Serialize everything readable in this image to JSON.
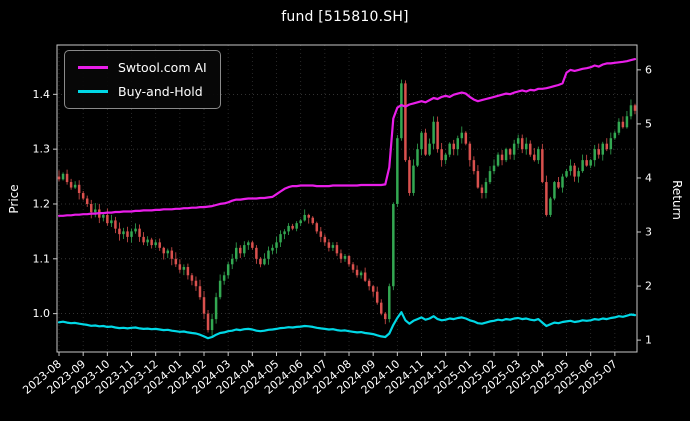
{
  "chart_data": {
    "type": "candlestick",
    "title": "fund [515810.SH]",
    "colors": {
      "background": "#000000",
      "text": "#ffffff",
      "grid": "#5a5a5a",
      "spine": "#c8c8c8",
      "up_candle": "#33a852",
      "down_candle": "#d9514e",
      "ai_line": "#e91ee9",
      "bh_line": "#00d8e6"
    },
    "left_axis": {
      "label": "Price",
      "ticks": [
        "1.0",
        "1.1",
        "1.2",
        "1.3",
        "1.4"
      ],
      "range": [
        0.93,
        1.49
      ]
    },
    "right_axis": {
      "label": "Return",
      "ticks": [
        "1",
        "2",
        "3",
        "4",
        "5",
        "6"
      ],
      "range": [
        0.78,
        6.46
      ]
    },
    "x_tick_labels": [
      "2023-08",
      "2023-09",
      "2023-10",
      "2023-11",
      "2023-12",
      "2024-01",
      "2024-02",
      "2024-03",
      "2024-04",
      "2024-05",
      "2024-06",
      "2024-07",
      "2024-08",
      "2024-09",
      "2024-10",
      "2024-11",
      "2024-12",
      "2025-01",
      "2025-02",
      "2025-03",
      "2025-04",
      "2025-05",
      "2025-06",
      "2025-07"
    ],
    "legend": [
      {
        "label": "Swtool.com AI",
        "color": "#e91ee9"
      },
      {
        "label": "Buy-and-Hold",
        "color": "#00d8e6"
      }
    ],
    "candles": {
      "axis": "left",
      "points_per_month": 6,
      "wick_jitter": 0.01,
      "closes": [
        1.245,
        1.255,
        1.24,
        1.23,
        1.235,
        1.22,
        1.21,
        1.2,
        1.185,
        1.19,
        1.175,
        1.18,
        1.165,
        1.17,
        1.155,
        1.145,
        1.15,
        1.14,
        1.15,
        1.155,
        1.14,
        1.13,
        1.135,
        1.125,
        1.13,
        1.12,
        1.11,
        1.115,
        1.1,
        1.09,
        1.08,
        1.085,
        1.07,
        1.06,
        1.05,
        1.03,
        1.0,
        0.97,
        0.99,
        1.03,
        1.06,
        1.07,
        1.09,
        1.1,
        1.12,
        1.11,
        1.125,
        1.13,
        1.12,
        1.1,
        1.09,
        1.1,
        1.115,
        1.12,
        1.13,
        1.145,
        1.15,
        1.16,
        1.155,
        1.165,
        1.17,
        1.18,
        1.175,
        1.165,
        1.15,
        1.14,
        1.13,
        1.12,
        1.125,
        1.11,
        1.1,
        1.105,
        1.09,
        1.08,
        1.07,
        1.075,
        1.06,
        1.05,
        1.04,
        1.02,
        1.0,
        0.99,
        1.05,
        1.2,
        1.32,
        1.42,
        1.28,
        1.22,
        1.27,
        1.3,
        1.33,
        1.29,
        1.31,
        1.35,
        1.3,
        1.28,
        1.29,
        1.31,
        1.3,
        1.32,
        1.33,
        1.31,
        1.28,
        1.26,
        1.23,
        1.22,
        1.24,
        1.26,
        1.27,
        1.29,
        1.28,
        1.3,
        1.29,
        1.31,
        1.32,
        1.3,
        1.31,
        1.29,
        1.28,
        1.3,
        1.24,
        1.18,
        1.21,
        1.24,
        1.23,
        1.25,
        1.26,
        1.27,
        1.25,
        1.26,
        1.28,
        1.27,
        1.28,
        1.3,
        1.29,
        1.31,
        1.3,
        1.32,
        1.33,
        1.35,
        1.34,
        1.36,
        1.38,
        1.37
      ]
    },
    "lines": [
      {
        "name": "Swtool.com AI",
        "axis": "right",
        "color": "#e91ee9",
        "values": [
          3.3,
          3.3,
          3.31,
          3.31,
          3.32,
          3.32,
          3.33,
          3.33,
          3.34,
          3.34,
          3.35,
          3.35,
          3.36,
          3.36,
          3.37,
          3.37,
          3.38,
          3.38,
          3.38,
          3.39,
          3.39,
          3.4,
          3.4,
          3.4,
          3.41,
          3.41,
          3.42,
          3.42,
          3.42,
          3.43,
          3.43,
          3.44,
          3.44,
          3.45,
          3.45,
          3.46,
          3.46,
          3.47,
          3.48,
          3.5,
          3.52,
          3.53,
          3.55,
          3.58,
          3.6,
          3.6,
          3.61,
          3.62,
          3.62,
          3.62,
          3.63,
          3.63,
          3.64,
          3.65,
          3.7,
          3.75,
          3.8,
          3.83,
          3.85,
          3.85,
          3.86,
          3.86,
          3.86,
          3.86,
          3.85,
          3.85,
          3.85,
          3.85,
          3.86,
          3.86,
          3.86,
          3.86,
          3.86,
          3.86,
          3.86,
          3.87,
          3.87,
          3.87,
          3.87,
          3.87,
          3.87,
          3.88,
          4.2,
          5.1,
          5.3,
          5.35,
          5.32,
          5.36,
          5.38,
          5.4,
          5.42,
          5.4,
          5.44,
          5.48,
          5.46,
          5.5,
          5.52,
          5.5,
          5.54,
          5.56,
          5.58,
          5.56,
          5.5,
          5.45,
          5.42,
          5.44,
          5.46,
          5.48,
          5.5,
          5.52,
          5.54,
          5.56,
          5.55,
          5.58,
          5.6,
          5.62,
          5.6,
          5.63,
          5.62,
          5.65,
          5.65,
          5.66,
          5.68,
          5.7,
          5.72,
          5.75,
          5.95,
          6.0,
          5.98,
          6.0,
          6.02,
          6.03,
          6.05,
          6.08,
          6.06,
          6.1,
          6.12,
          6.12,
          6.13,
          6.14,
          6.15,
          6.16,
          6.18,
          6.2
        ]
      },
      {
        "name": "Buy-and-Hold",
        "axis": "right",
        "color": "#00d8e6",
        "derived_from": "candles.closes",
        "scale": 1.068,
        "start_value": 1.33,
        "end_value": 1.46
      }
    ]
  }
}
